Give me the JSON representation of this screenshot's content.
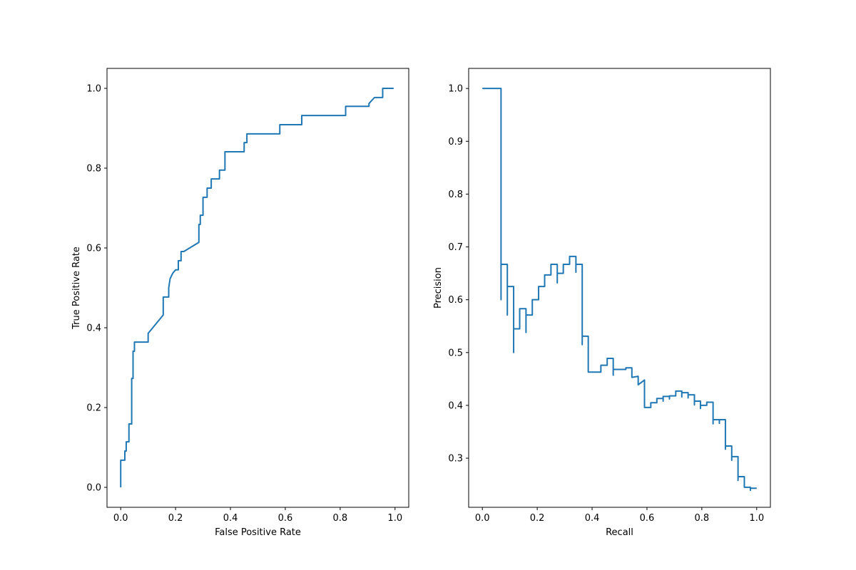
{
  "chart_data": [
    {
      "type": "line",
      "title": "",
      "xlabel": "False Positive Rate",
      "ylabel": "True Positive Rate",
      "xlim": [
        -0.05,
        1.05
      ],
      "ylim": [
        -0.05,
        1.05
      ],
      "xticks": [
        "0.0",
        "0.2",
        "0.4",
        "0.6",
        "0.8",
        "1.0"
      ],
      "yticks": [
        "0.0",
        "0.2",
        "0.4",
        "0.6",
        "0.8",
        "1.0"
      ],
      "grid": false,
      "line_color": "#1f77b4",
      "series": [
        {
          "x": [
            0.0,
            0.0,
            0.0,
            0.0,
            0.015,
            0.015,
            0.02,
            0.02,
            0.03,
            0.03,
            0.03,
            0.04,
            0.04,
            0.045,
            0.045,
            0.045,
            0.05,
            0.05,
            0.055,
            0.055,
            0.1,
            0.1,
            0.155,
            0.155,
            0.175,
            0.175,
            0.18,
            0.185,
            0.19,
            0.2,
            0.21,
            0.21,
            0.22,
            0.22,
            0.23,
            0.23,
            0.285,
            0.285,
            0.29,
            0.29,
            0.3,
            0.3,
            0.315,
            0.315,
            0.33,
            0.33,
            0.36,
            0.36,
            0.38,
            0.38,
            0.45,
            0.45,
            0.46,
            0.46,
            0.58,
            0.58,
            0.66,
            0.66,
            0.82,
            0.82,
            0.905,
            0.905,
            0.925,
            0.925,
            0.955,
            0.955,
            0.995
          ],
          "y": [
            0.0,
            0.023,
            0.045,
            0.068,
            0.068,
            0.091,
            0.091,
            0.114,
            0.114,
            0.136,
            0.159,
            0.159,
            0.273,
            0.273,
            0.318,
            0.341,
            0.341,
            0.364,
            0.364,
            0.364,
            0.364,
            0.386,
            0.432,
            0.477,
            0.477,
            0.5,
            0.523,
            0.53,
            0.537,
            0.545,
            0.545,
            0.568,
            0.568,
            0.591,
            0.591,
            0.591,
            0.614,
            0.659,
            0.659,
            0.682,
            0.682,
            0.727,
            0.727,
            0.75,
            0.75,
            0.773,
            0.773,
            0.795,
            0.795,
            0.841,
            0.841,
            0.864,
            0.864,
            0.886,
            0.886,
            0.909,
            0.909,
            0.932,
            0.932,
            0.955,
            0.955,
            0.962,
            0.977,
            0.977,
            0.977,
            1.0,
            1.0
          ]
        }
      ]
    },
    {
      "type": "line",
      "title": "",
      "xlabel": "Recall",
      "ylabel": "Precision",
      "xlim": [
        -0.05,
        1.05
      ],
      "ylim": [
        0.207,
        1.038
      ],
      "xticks": [
        "0.0",
        "0.2",
        "0.4",
        "0.6",
        "0.8",
        "1.0"
      ],
      "yticks": [
        "0.3",
        "0.4",
        "0.5",
        "0.6",
        "0.7",
        "0.8",
        "0.9",
        "1.0"
      ],
      "grid": false,
      "line_color": "#1f77b4",
      "series": [
        {
          "x": [
            0.0,
            0.068,
            0.068,
            0.068,
            0.068,
            0.091,
            0.091,
            0.091,
            0.114,
            0.114,
            0.114,
            0.136,
            0.136,
            0.159,
            0.159,
            0.159,
            0.159,
            0.182,
            0.182,
            0.205,
            0.205,
            0.227,
            0.227,
            0.25,
            0.25,
            0.273,
            0.273,
            0.273,
            0.295,
            0.295,
            0.318,
            0.318,
            0.341,
            0.341,
            0.341,
            0.364,
            0.364,
            0.364,
            0.364,
            0.386,
            0.386,
            0.432,
            0.432,
            0.455,
            0.455,
            0.477,
            0.477,
            0.477,
            0.523,
            0.523,
            0.545,
            0.545,
            0.545,
            0.568,
            0.568,
            0.568,
            0.591,
            0.591,
            0.614,
            0.614,
            0.636,
            0.636,
            0.659,
            0.659,
            0.659,
            0.682,
            0.682,
            0.682,
            0.705,
            0.705,
            0.727,
            0.727,
            0.727,
            0.75,
            0.75,
            0.75,
            0.773,
            0.773,
            0.773,
            0.795,
            0.795,
            0.795,
            0.818,
            0.818,
            0.841,
            0.841,
            0.841,
            0.864,
            0.864,
            0.864,
            0.886,
            0.886,
            0.886,
            0.909,
            0.909,
            0.909,
            0.932,
            0.932,
            0.932,
            0.955,
            0.955,
            0.977,
            0.977,
            0.977,
            1.0
          ],
          "y": [
            1.0,
            1.0,
            0.6,
            0.6,
            0.667,
            0.667,
            0.571,
            0.625,
            0.625,
            0.5,
            0.545,
            0.545,
            0.583,
            0.583,
            0.538,
            0.538,
            0.571,
            0.571,
            0.6,
            0.6,
            0.625,
            0.625,
            0.647,
            0.647,
            0.667,
            0.667,
            0.632,
            0.65,
            0.65,
            0.667,
            0.667,
            0.682,
            0.682,
            0.652,
            0.667,
            0.667,
            0.515,
            0.515,
            0.531,
            0.531,
            0.463,
            0.463,
            0.476,
            0.476,
            0.489,
            0.489,
            0.457,
            0.468,
            0.468,
            0.471,
            0.471,
            0.453,
            0.453,
            0.455,
            0.455,
            0.439,
            0.448,
            0.396,
            0.396,
            0.405,
            0.405,
            0.413,
            0.413,
            0.408,
            0.417,
            0.417,
            0.412,
            0.418,
            0.418,
            0.427,
            0.427,
            0.416,
            0.424,
            0.424,
            0.414,
            0.42,
            0.42,
            0.401,
            0.408,
            0.408,
            0.394,
            0.4,
            0.4,
            0.406,
            0.406,
            0.365,
            0.373,
            0.373,
            0.366,
            0.373,
            0.373,
            0.317,
            0.323,
            0.323,
            0.296,
            0.303,
            0.303,
            0.258,
            0.265,
            0.265,
            0.245,
            0.245,
            0.239,
            0.243,
            0.243
          ]
        }
      ]
    }
  ]
}
